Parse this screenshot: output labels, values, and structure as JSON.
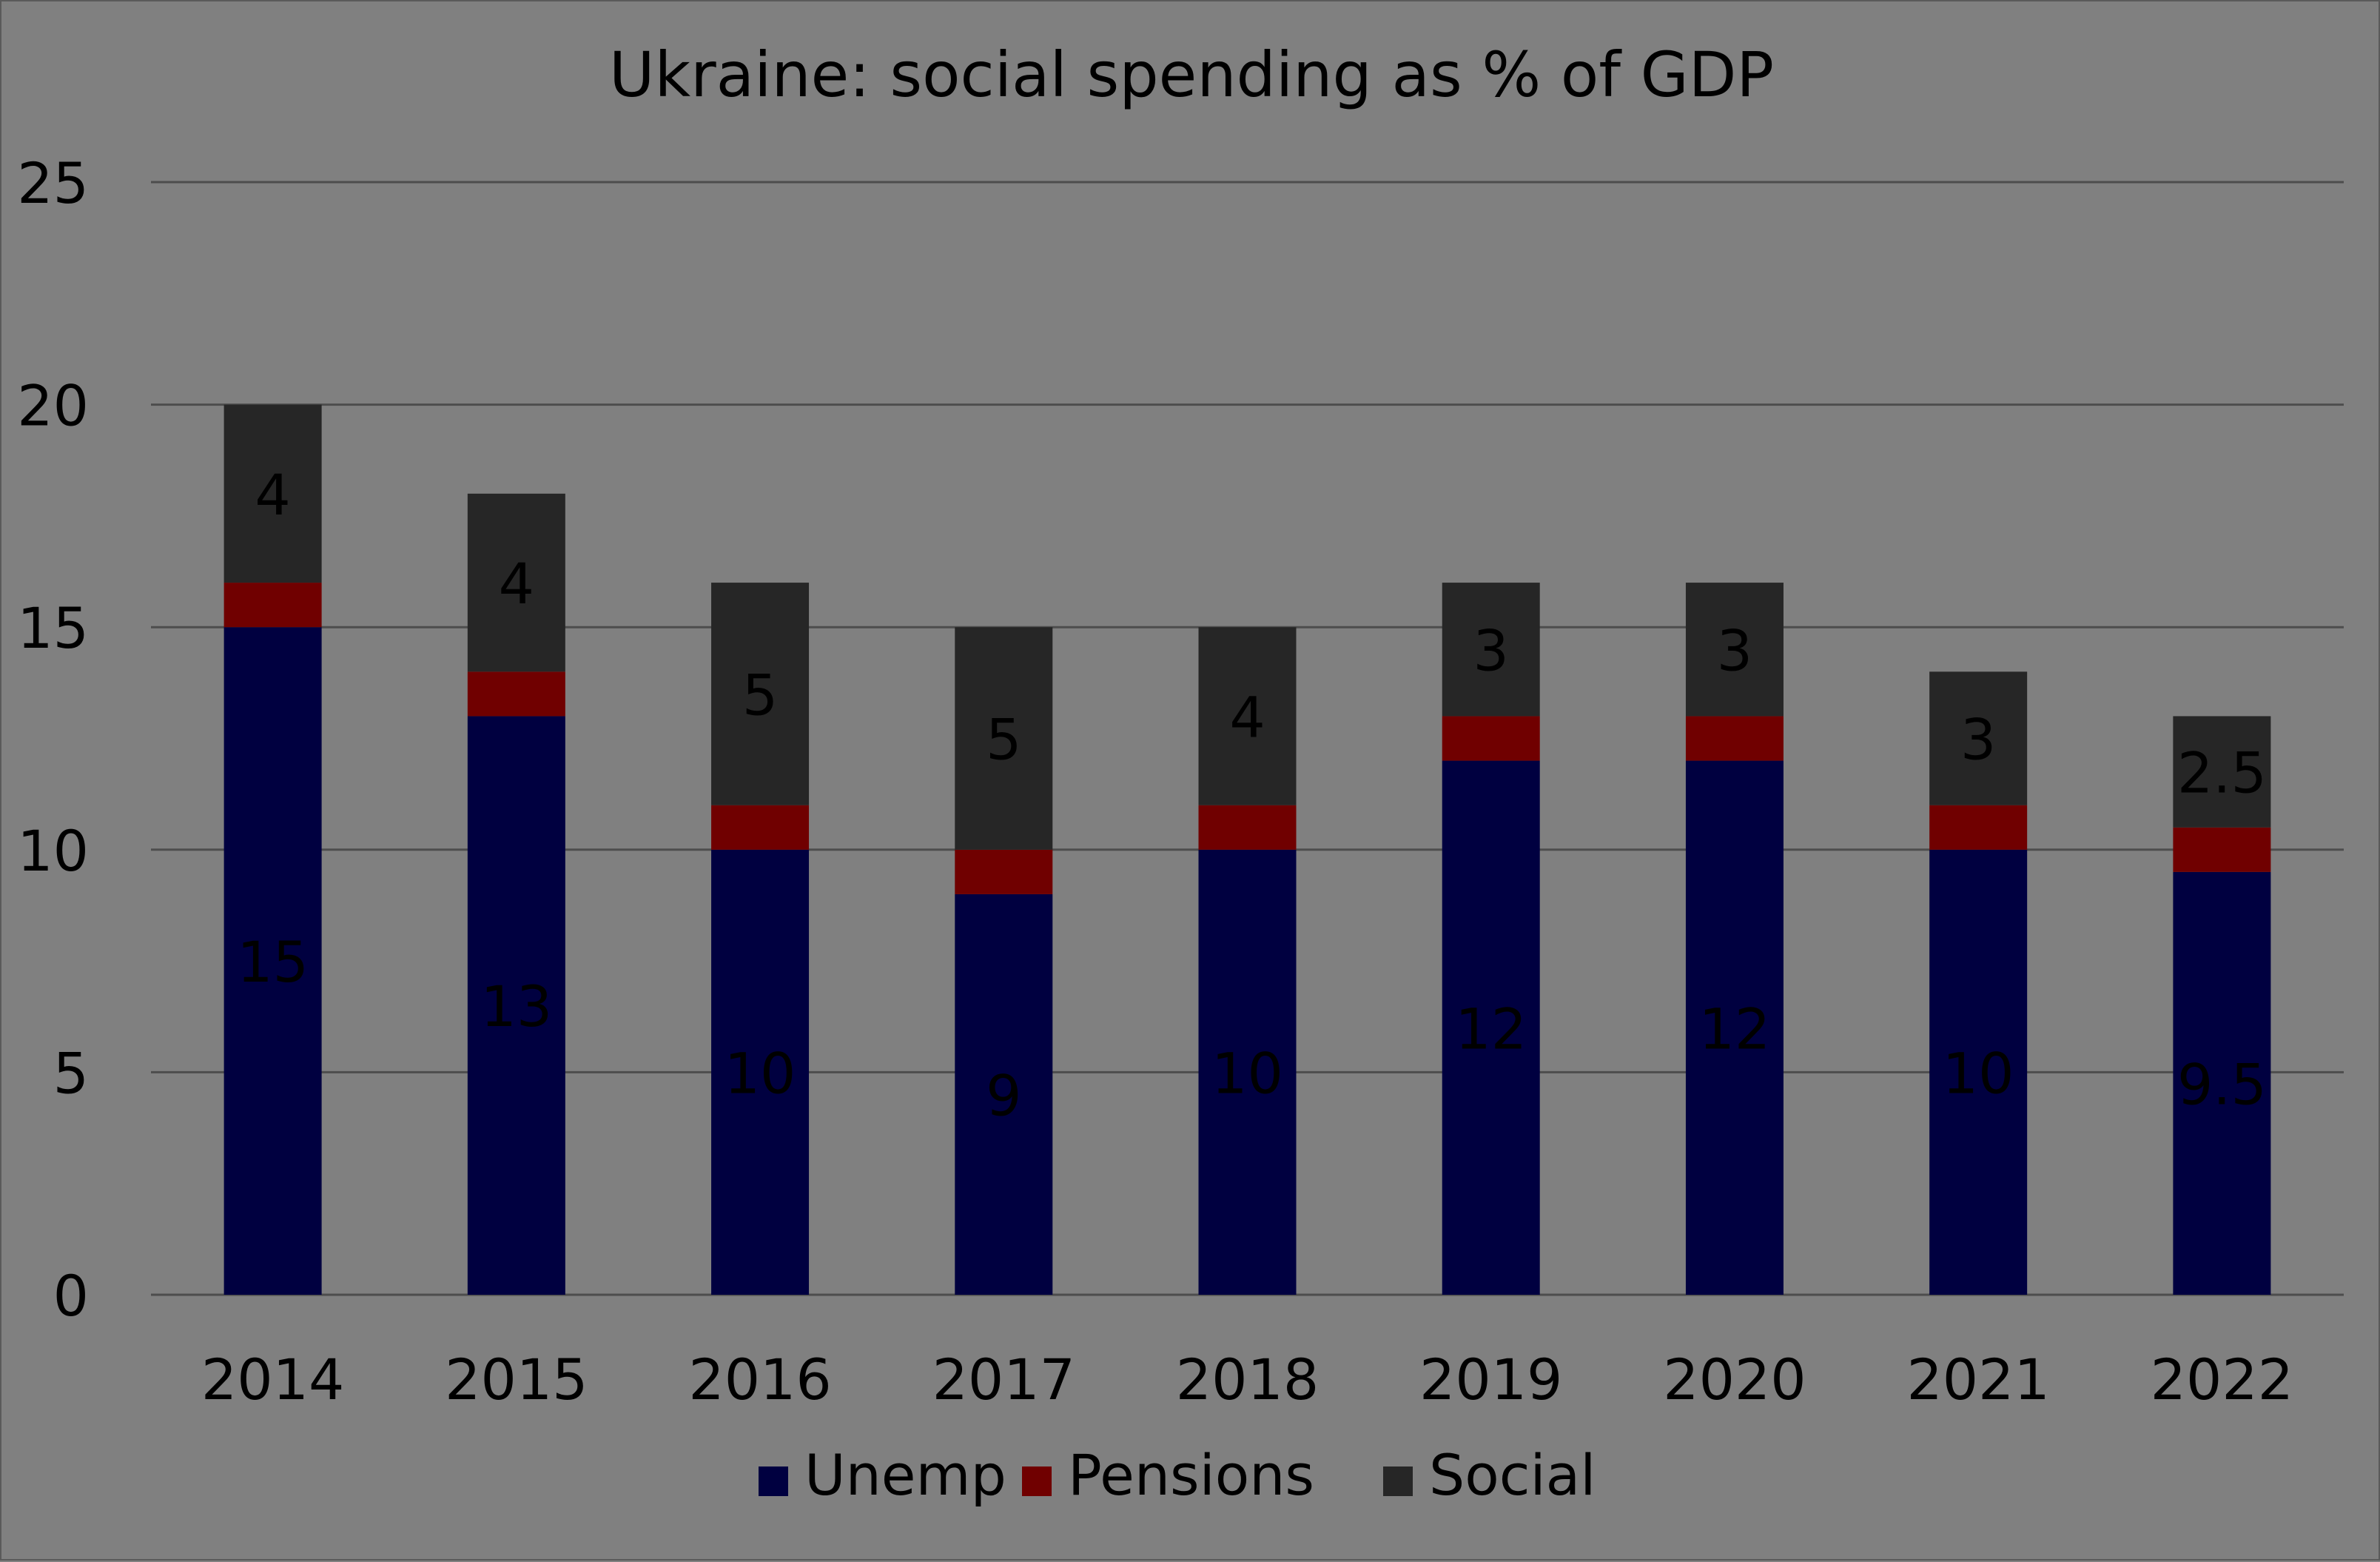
{
  "chart_data": {
    "type": "bar",
    "stacked": true,
    "title": "Ukraine: social spending as % of GDP",
    "xlabel": "",
    "ylabel": "",
    "categories": [
      "2014",
      "2015",
      "2016",
      "2017",
      "2018",
      "2019",
      "2020",
      "2021",
      "2022"
    ],
    "series": [
      {
        "name": "Unemp",
        "color": "#000040",
        "values": [
          15,
          13,
          10,
          9,
          10,
          12,
          12,
          10,
          9.5
        ]
      },
      {
        "name": "Pensions",
        "color": "#700000",
        "values": [
          1,
          1,
          1,
          1,
          1,
          1,
          1,
          1,
          1
        ]
      },
      {
        "name": "Social",
        "color": "#262626",
        "values": [
          4,
          4,
          5,
          5,
          4,
          3,
          3,
          3,
          2.5
        ]
      }
    ],
    "labeled_series": [
      "Unemp",
      "Social"
    ],
    "ylim": [
      0,
      25
    ],
    "yticks": [
      0,
      5,
      10,
      15,
      20,
      25
    ],
    "grid": true,
    "gridline_color": "#4d4d4d",
    "background": "#808080",
    "legend_position": "bottom"
  }
}
